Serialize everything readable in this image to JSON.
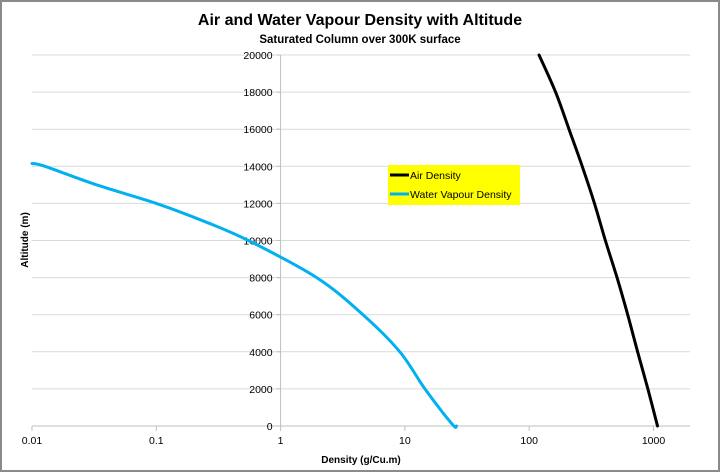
{
  "chart_data": {
    "type": "line",
    "title": "Air and Water Vapour  Density with Altitude",
    "subtitle": "Saturated Column over 300K surface",
    "xlabel": "Density (g/Cu.m)",
    "ylabel": "Altitude (m)",
    "xscale": "log",
    "xlim": [
      0.01,
      2000
    ],
    "ylim": [
      0,
      20000
    ],
    "x_ticks": [
      "0.01",
      "0.1",
      "1",
      "10",
      "100",
      "1000"
    ],
    "x_tick_values": [
      0.01,
      0.1,
      1,
      10,
      100,
      1000
    ],
    "y_ticks": [
      "0",
      "2000",
      "4000",
      "6000",
      "8000",
      "10000",
      "12000",
      "14000",
      "16000",
      "18000",
      "20000"
    ],
    "y_tick_values": [
      0,
      2000,
      4000,
      6000,
      8000,
      10000,
      12000,
      14000,
      16000,
      18000,
      20000
    ],
    "grid": "horizontal",
    "y_axis_crosses_at_x": 1,
    "legend_position": "center",
    "series": [
      {
        "name": "Air Density",
        "color": "#000000",
        "x": [
          1077,
          901,
          745,
          620,
          509,
          410,
          335,
          267,
          209,
          163,
          120
        ],
        "y": [
          0,
          2000,
          4000,
          6000,
          8000,
          10000,
          12000,
          14000,
          16000,
          18000,
          20000
        ]
      },
      {
        "name": "Water Vapour Density",
        "color": "#00B0F0",
        "x": [
          26,
          24,
          14.5,
          9.1,
          4.6,
          1.95,
          0.55,
          0.25,
          0.1,
          0.033,
          0.0127,
          0.01
        ],
        "y": [
          0,
          100,
          2000,
          4000,
          6000,
          8000,
          10000,
          11000,
          12000,
          13000,
          14000,
          14150
        ]
      }
    ]
  }
}
